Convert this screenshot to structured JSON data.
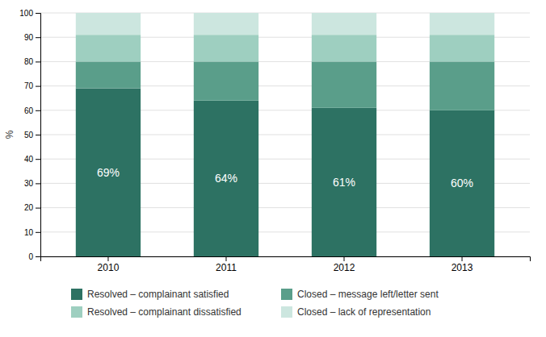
{
  "chart_data": {
    "type": "bar",
    "stacked": true,
    "grid": true,
    "legend": "bottom",
    "y_label": "%",
    "categories": [
      "2010",
      "2011",
      "2012",
      "2013"
    ],
    "series": [
      {
        "name": "Resolved – complainant satisfied",
        "color": "#2d7263",
        "values": [
          69,
          64,
          61,
          60
        ],
        "data_labels": true,
        "value_labels": [
          "69%",
          "64%",
          "61%",
          "60%"
        ]
      },
      {
        "name": "Closed – message left/letter sent",
        "color": "#5a9e8a",
        "values": [
          11,
          16,
          19,
          20
        ]
      },
      {
        "name": "Resolved – complainant dissatisfied",
        "color": "#9ecfc0",
        "values": [
          11,
          11,
          11,
          11
        ]
      },
      {
        "name": "Closed – lack of representation",
        "color": "#cce6df",
        "values": [
          9,
          9,
          9,
          9
        ]
      }
    ],
    "ylim": [
      0,
      100
    ],
    "yticks": [
      0,
      10,
      20,
      30,
      40,
      50,
      60,
      70,
      80,
      90,
      100
    ]
  }
}
